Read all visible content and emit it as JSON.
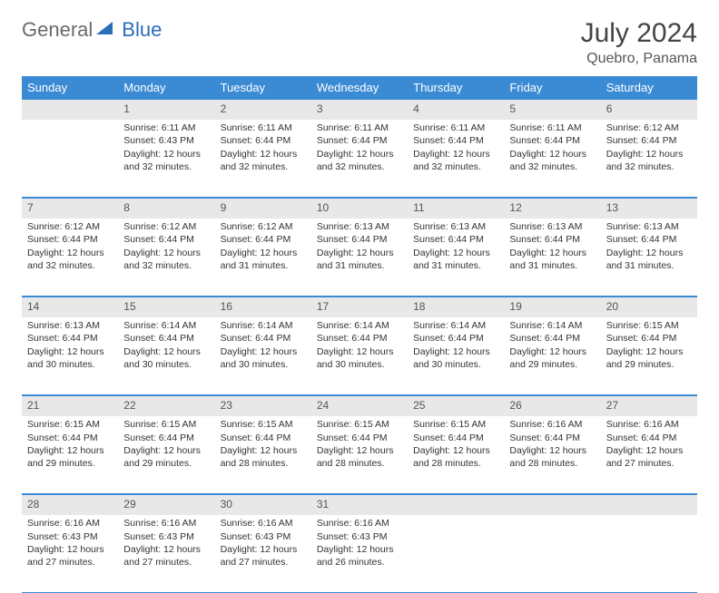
{
  "logo": {
    "text1": "General",
    "text2": "Blue"
  },
  "title": "July 2024",
  "location": "Quebro, Panama",
  "colors": {
    "header_bg": "#3b8bd4",
    "header_text": "#ffffff",
    "daynum_bg": "#e8e8e8",
    "border": "#3b8bd4",
    "logo_gray": "#6a6a6a",
    "logo_blue": "#2a6db8"
  },
  "weekdays": [
    "Sunday",
    "Monday",
    "Tuesday",
    "Wednesday",
    "Thursday",
    "Friday",
    "Saturday"
  ],
  "start_blank": 1,
  "days": [
    {
      "n": 1,
      "sr": "6:11 AM",
      "ss": "6:43 PM",
      "dl": "12 hours and 32 minutes."
    },
    {
      "n": 2,
      "sr": "6:11 AM",
      "ss": "6:44 PM",
      "dl": "12 hours and 32 minutes."
    },
    {
      "n": 3,
      "sr": "6:11 AM",
      "ss": "6:44 PM",
      "dl": "12 hours and 32 minutes."
    },
    {
      "n": 4,
      "sr": "6:11 AM",
      "ss": "6:44 PM",
      "dl": "12 hours and 32 minutes."
    },
    {
      "n": 5,
      "sr": "6:11 AM",
      "ss": "6:44 PM",
      "dl": "12 hours and 32 minutes."
    },
    {
      "n": 6,
      "sr": "6:12 AM",
      "ss": "6:44 PM",
      "dl": "12 hours and 32 minutes."
    },
    {
      "n": 7,
      "sr": "6:12 AM",
      "ss": "6:44 PM",
      "dl": "12 hours and 32 minutes."
    },
    {
      "n": 8,
      "sr": "6:12 AM",
      "ss": "6:44 PM",
      "dl": "12 hours and 32 minutes."
    },
    {
      "n": 9,
      "sr": "6:12 AM",
      "ss": "6:44 PM",
      "dl": "12 hours and 31 minutes."
    },
    {
      "n": 10,
      "sr": "6:13 AM",
      "ss": "6:44 PM",
      "dl": "12 hours and 31 minutes."
    },
    {
      "n": 11,
      "sr": "6:13 AM",
      "ss": "6:44 PM",
      "dl": "12 hours and 31 minutes."
    },
    {
      "n": 12,
      "sr": "6:13 AM",
      "ss": "6:44 PM",
      "dl": "12 hours and 31 minutes."
    },
    {
      "n": 13,
      "sr": "6:13 AM",
      "ss": "6:44 PM",
      "dl": "12 hours and 31 minutes."
    },
    {
      "n": 14,
      "sr": "6:13 AM",
      "ss": "6:44 PM",
      "dl": "12 hours and 30 minutes."
    },
    {
      "n": 15,
      "sr": "6:14 AM",
      "ss": "6:44 PM",
      "dl": "12 hours and 30 minutes."
    },
    {
      "n": 16,
      "sr": "6:14 AM",
      "ss": "6:44 PM",
      "dl": "12 hours and 30 minutes."
    },
    {
      "n": 17,
      "sr": "6:14 AM",
      "ss": "6:44 PM",
      "dl": "12 hours and 30 minutes."
    },
    {
      "n": 18,
      "sr": "6:14 AM",
      "ss": "6:44 PM",
      "dl": "12 hours and 30 minutes."
    },
    {
      "n": 19,
      "sr": "6:14 AM",
      "ss": "6:44 PM",
      "dl": "12 hours and 29 minutes."
    },
    {
      "n": 20,
      "sr": "6:15 AM",
      "ss": "6:44 PM",
      "dl": "12 hours and 29 minutes."
    },
    {
      "n": 21,
      "sr": "6:15 AM",
      "ss": "6:44 PM",
      "dl": "12 hours and 29 minutes."
    },
    {
      "n": 22,
      "sr": "6:15 AM",
      "ss": "6:44 PM",
      "dl": "12 hours and 29 minutes."
    },
    {
      "n": 23,
      "sr": "6:15 AM",
      "ss": "6:44 PM",
      "dl": "12 hours and 28 minutes."
    },
    {
      "n": 24,
      "sr": "6:15 AM",
      "ss": "6:44 PM",
      "dl": "12 hours and 28 minutes."
    },
    {
      "n": 25,
      "sr": "6:15 AM",
      "ss": "6:44 PM",
      "dl": "12 hours and 28 minutes."
    },
    {
      "n": 26,
      "sr": "6:16 AM",
      "ss": "6:44 PM",
      "dl": "12 hours and 28 minutes."
    },
    {
      "n": 27,
      "sr": "6:16 AM",
      "ss": "6:44 PM",
      "dl": "12 hours and 27 minutes."
    },
    {
      "n": 28,
      "sr": "6:16 AM",
      "ss": "6:43 PM",
      "dl": "12 hours and 27 minutes."
    },
    {
      "n": 29,
      "sr": "6:16 AM",
      "ss": "6:43 PM",
      "dl": "12 hours and 27 minutes."
    },
    {
      "n": 30,
      "sr": "6:16 AM",
      "ss": "6:43 PM",
      "dl": "12 hours and 27 minutes."
    },
    {
      "n": 31,
      "sr": "6:16 AM",
      "ss": "6:43 PM",
      "dl": "12 hours and 26 minutes."
    }
  ],
  "labels": {
    "sunrise": "Sunrise:",
    "sunset": "Sunset:",
    "daylight": "Daylight:"
  }
}
